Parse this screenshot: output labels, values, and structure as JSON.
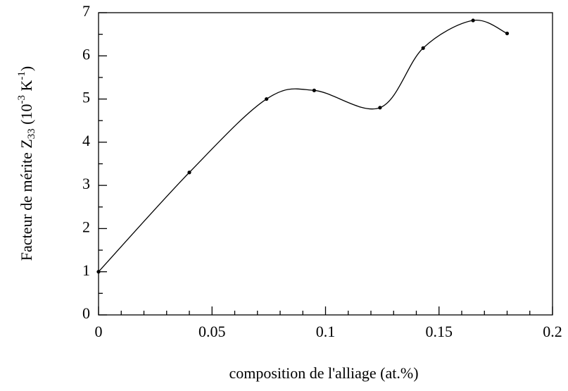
{
  "chart_data": {
    "type": "line",
    "xlabel": "composition de l'alliage (at.%)",
    "ylabel": [
      "Facteur de mérite Z",
      "33",
      " (10",
      "-3",
      " K",
      "-1",
      ")"
    ],
    "x": [
      0,
      0.04,
      0.074,
      0.095,
      0.124,
      0.143,
      0.165,
      0.18
    ],
    "series": [
      {
        "color": "#000000",
        "values": [
          1,
          3.3,
          5.0,
          5.2,
          4.8,
          6.18,
          6.82,
          6.52
        ]
      }
    ],
    "xlim": [
      0,
      0.2
    ],
    "xticks": [
      0,
      0.05,
      0.1,
      0.15,
      0.2
    ],
    "ylim": [
      0,
      7
    ],
    "yticks": [
      0,
      1,
      2,
      3,
      4,
      5,
      6,
      7
    ],
    "smooth": true
  }
}
